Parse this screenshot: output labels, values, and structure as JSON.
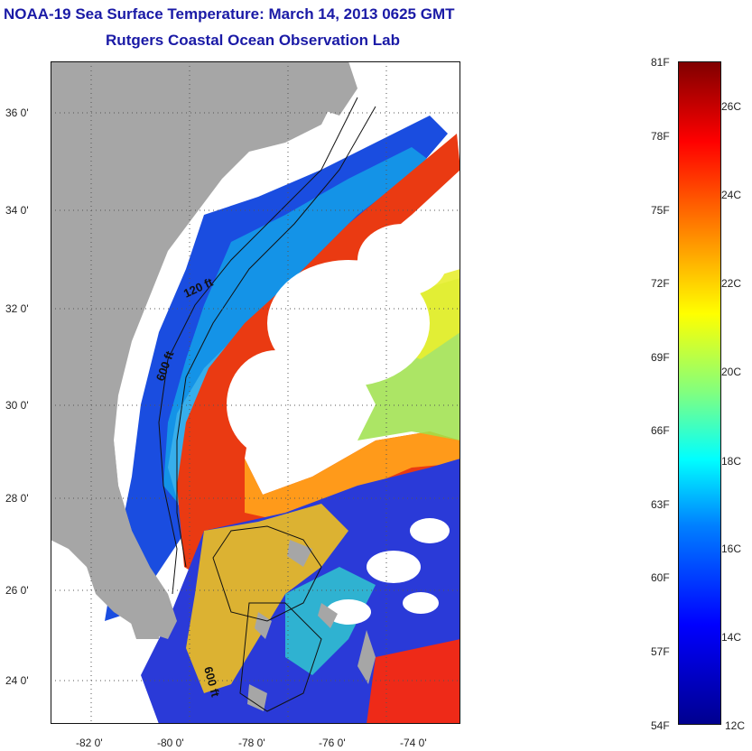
{
  "title": "NOAA-19 Sea Surface Temperature:  March 14, 2013 0625 GMT",
  "subtitle": "Rutgers Coastal Ocean Observation Lab",
  "map": {
    "lat_ticks": [
      "36 0'",
      "34 0'",
      "32 0'",
      "30 0'",
      "28 0'",
      "26 0'",
      "24 0'"
    ],
    "lon_ticks": [
      "-82 0'",
      "-80 0'",
      "-78 0'",
      "-76 0'",
      "-74 0'"
    ],
    "contour_labels": [
      "120 ft",
      "600 ft",
      "600 ft"
    ],
    "land_color": "#a6a6a6",
    "no_data_color": "#ffffff"
  },
  "colorbar": {
    "fahrenheit_ticks": [
      "81F",
      "78F",
      "75F",
      "72F",
      "69F",
      "66F",
      "63F",
      "60F",
      "57F",
      "54F"
    ],
    "celsius_ticks": [
      "26C",
      "24C",
      "22C",
      "20C",
      "18C",
      "16C",
      "14C",
      "12C"
    ],
    "colors": [
      "#00008f",
      "#0000ff",
      "#0080ff",
      "#00ffff",
      "#80ff80",
      "#ffff00",
      "#ff8000",
      "#ff0000",
      "#800000"
    ]
  }
}
